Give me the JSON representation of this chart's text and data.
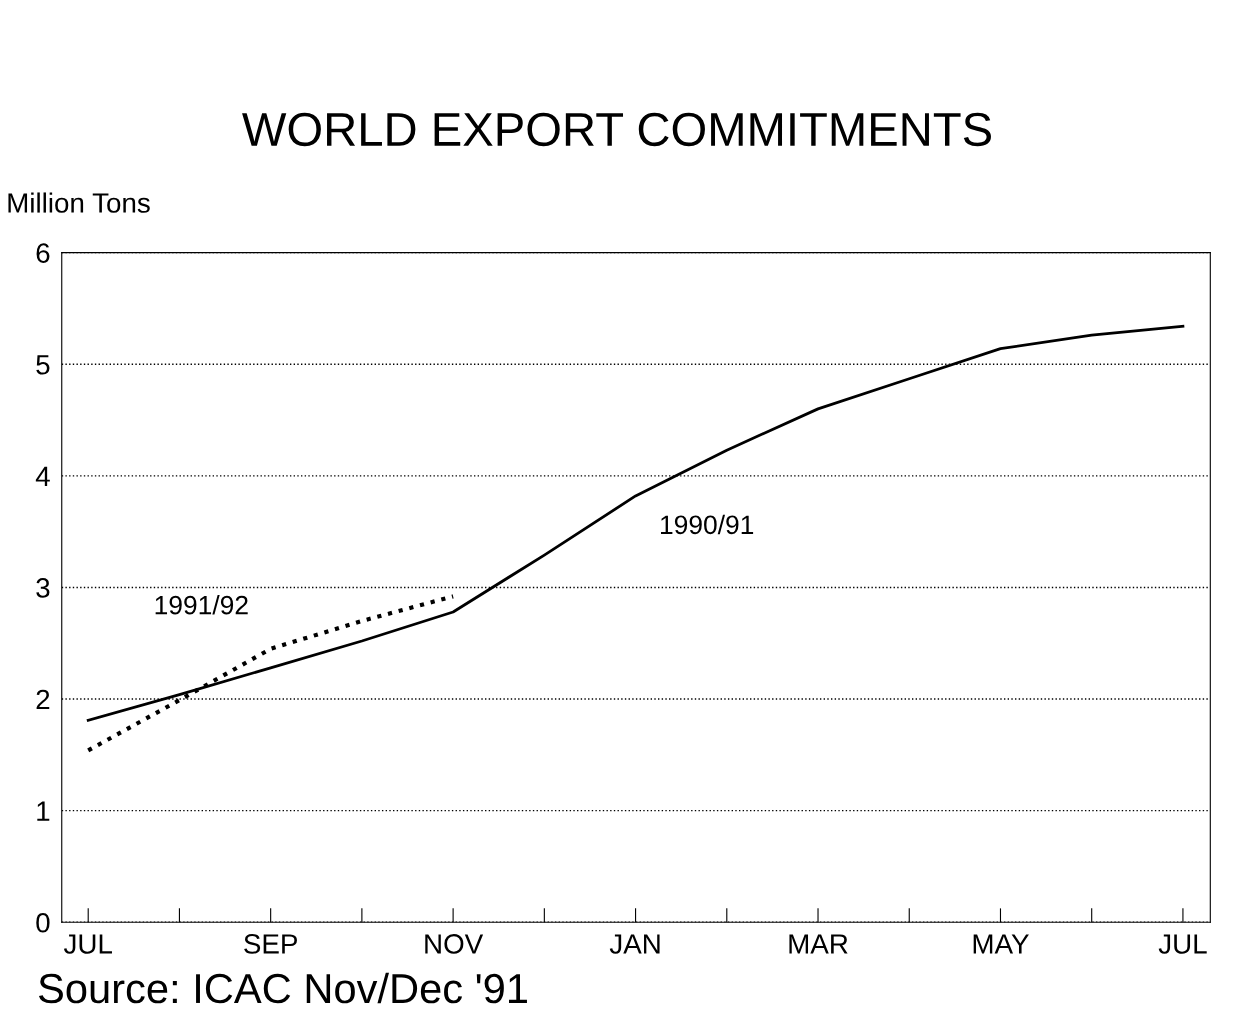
{
  "chart_data": {
    "type": "line",
    "title": "WORLD EXPORT COMMITMENTS",
    "ylabel": "Million Tons",
    "categories": [
      "JUL",
      null,
      "SEP",
      null,
      "NOV",
      null,
      "JAN",
      null,
      "MAR",
      null,
      "MAY",
      null,
      "JUL"
    ],
    "series": [
      {
        "name": "1990/91",
        "color": "#000000",
        "line_style": "solid",
        "values": [
          1.81,
          2.04,
          2.28,
          2.52,
          2.78,
          3.29,
          3.82,
          4.23,
          4.6,
          4.87,
          5.14,
          5.26,
          5.34
        ]
      },
      {
        "name": "1991/92",
        "color": "#000000",
        "line_style": "dotted",
        "values": [
          1.54,
          1.99,
          2.45,
          2.7,
          2.92,
          null,
          null,
          null,
          null,
          null,
          null,
          null,
          null
        ]
      }
    ],
    "ylim": [
      0,
      6
    ],
    "yticks": [
      0,
      1,
      2,
      3,
      4,
      5,
      6
    ],
    "grid": "y",
    "legend": false,
    "marker": "none",
    "annotations": [
      "Source: ICAC Nov/Dec '91"
    ]
  }
}
